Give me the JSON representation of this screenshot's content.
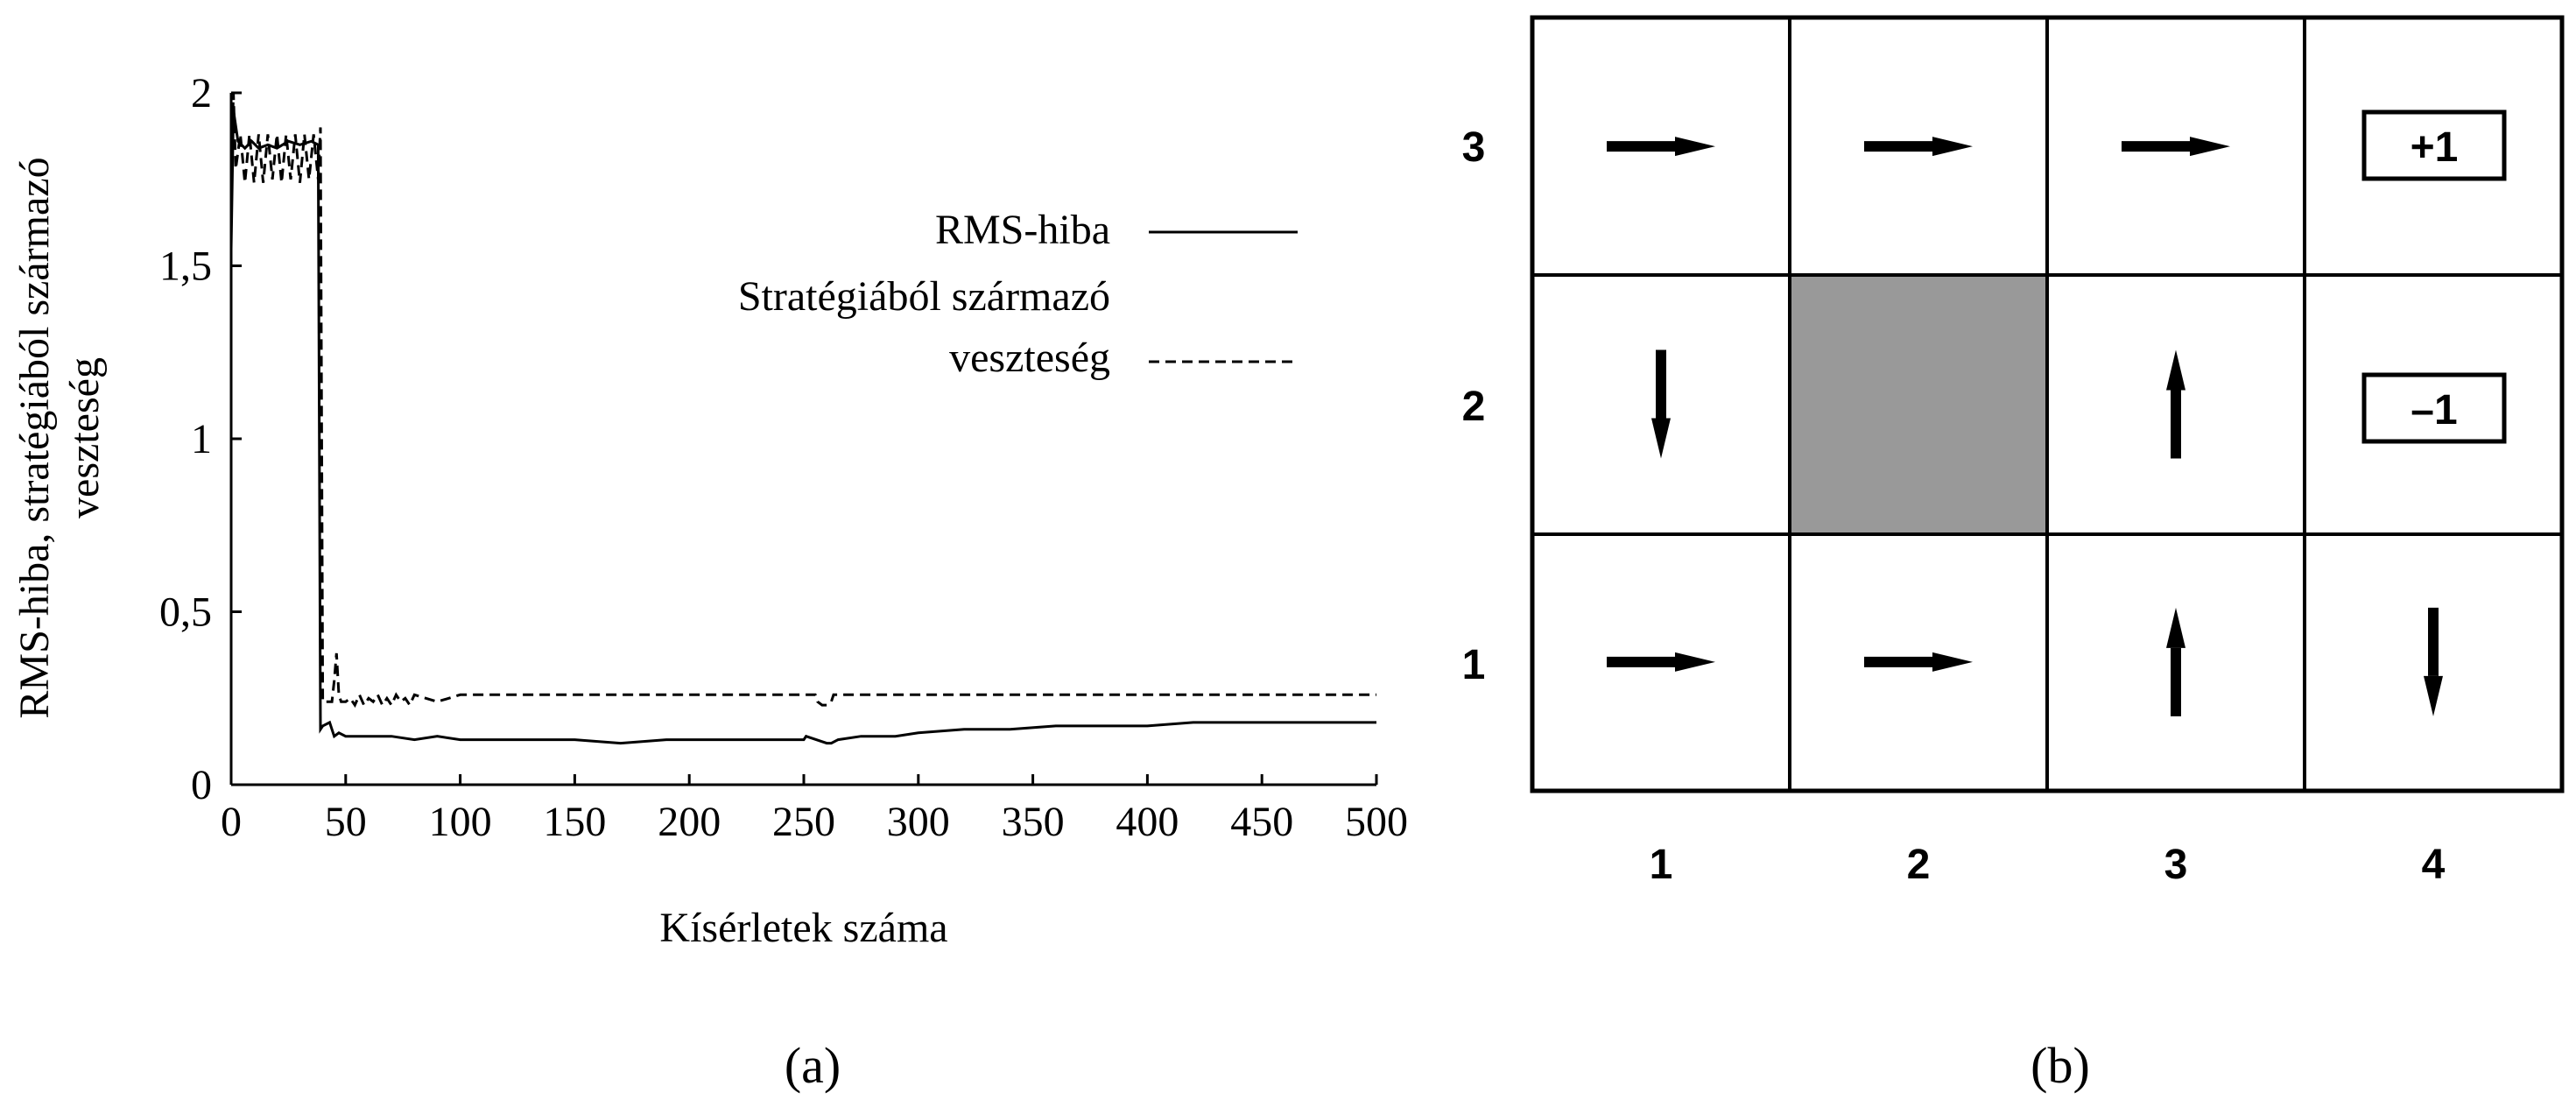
{
  "panel_a": {
    "caption": "(a)",
    "legend": {
      "rms_label": "RMS-hiba",
      "loss_label_line1": "Stratégiából származó",
      "loss_label_line2": "veszteség"
    }
  },
  "panel_b": {
    "caption": "(b)",
    "row_labels": [
      "3",
      "2",
      "1"
    ],
    "col_labels": [
      "1",
      "2",
      "3",
      "4"
    ],
    "terminal_plus": "+1",
    "terminal_minus": "–1",
    "wall_color": "#999999",
    "policy": [
      {
        "col": 1,
        "row": 3,
        "dir": "right"
      },
      {
        "col": 2,
        "row": 3,
        "dir": "right"
      },
      {
        "col": 3,
        "row": 3,
        "dir": "right"
      },
      {
        "col": 1,
        "row": 2,
        "dir": "down"
      },
      {
        "col": 3,
        "row": 2,
        "dir": "up"
      },
      {
        "col": 1,
        "row": 1,
        "dir": "right"
      },
      {
        "col": 2,
        "row": 1,
        "dir": "right"
      },
      {
        "col": 3,
        "row": 1,
        "dir": "up"
      },
      {
        "col": 4,
        "row": 1,
        "dir": "down"
      }
    ]
  },
  "chart_data": {
    "type": "line",
    "title": "",
    "xlabel": "Kísérletek száma",
    "ylabel_line1": "RMS-hiba, stratégiából származó",
    "ylabel_line2": "veszteség",
    "xlim": [
      0,
      500
    ],
    "ylim": [
      0,
      2
    ],
    "xticks": [
      0,
      50,
      100,
      150,
      200,
      250,
      300,
      350,
      400,
      450,
      500
    ],
    "yticks": [
      {
        "value": 0,
        "label": "0"
      },
      {
        "value": 0.5,
        "label": "0,5"
      },
      {
        "value": 1,
        "label": "1"
      },
      {
        "value": 1.5,
        "label": "1,5"
      },
      {
        "value": 2,
        "label": "2"
      }
    ],
    "grid": false,
    "legend_position": "top-right",
    "series": [
      {
        "name": "RMS-hiba",
        "style": "solid",
        "x": [
          0,
          1,
          3,
          6,
          9,
          12,
          16,
          20,
          25,
          30,
          35,
          38,
          39,
          40,
          43,
          45,
          47,
          50,
          60,
          70,
          80,
          90,
          100,
          110,
          130,
          150,
          170,
          190,
          200,
          220,
          240,
          250,
          251,
          260,
          262,
          265,
          275,
          290,
          300,
          320,
          340,
          360,
          380,
          400,
          420,
          440,
          460,
          480,
          490,
          500
        ],
        "y": [
          1.55,
          1.95,
          1.86,
          1.84,
          1.86,
          1.84,
          1.85,
          1.84,
          1.86,
          1.85,
          1.86,
          1.85,
          0.16,
          0.17,
          0.18,
          0.14,
          0.15,
          0.14,
          0.14,
          0.14,
          0.13,
          0.14,
          0.13,
          0.13,
          0.13,
          0.13,
          0.12,
          0.13,
          0.13,
          0.13,
          0.13,
          0.13,
          0.14,
          0.12,
          0.12,
          0.13,
          0.14,
          0.14,
          0.15,
          0.16,
          0.16,
          0.17,
          0.17,
          0.17,
          0.18,
          0.18,
          0.18,
          0.18,
          0.18,
          0.18
        ]
      },
      {
        "name": "Stratégiából származó veszteség",
        "style": "dashed",
        "x": [
          0,
          1,
          2,
          4,
          6,
          8,
          10,
          12,
          14,
          16,
          18,
          20,
          22,
          24,
          26,
          28,
          30,
          32,
          34,
          36,
          38,
          39,
          40,
          44,
          45,
          46,
          47,
          48,
          50,
          52,
          54,
          56,
          58,
          60,
          62,
          64,
          66,
          68,
          70,
          72,
          74,
          76,
          78,
          80,
          85,
          90,
          95,
          100,
          150,
          200,
          255,
          256,
          258,
          260,
          262,
          263,
          265,
          300,
          400,
          500
        ],
        "y": [
          1.75,
          2.0,
          1.78,
          1.88,
          1.74,
          1.88,
          1.74,
          1.88,
          1.74,
          1.88,
          1.75,
          1.88,
          1.74,
          1.88,
          1.75,
          1.88,
          1.74,
          1.88,
          1.75,
          1.88,
          1.75,
          1.9,
          0.24,
          0.24,
          0.3,
          0.38,
          0.26,
          0.24,
          0.24,
          0.25,
          0.23,
          0.26,
          0.23,
          0.25,
          0.24,
          0.26,
          0.23,
          0.25,
          0.23,
          0.26,
          0.24,
          0.25,
          0.23,
          0.26,
          0.25,
          0.24,
          0.25,
          0.26,
          0.26,
          0.26,
          0.26,
          0.24,
          0.23,
          0.23,
          0.24,
          0.26,
          0.26,
          0.26,
          0.26,
          0.26
        ]
      }
    ]
  }
}
